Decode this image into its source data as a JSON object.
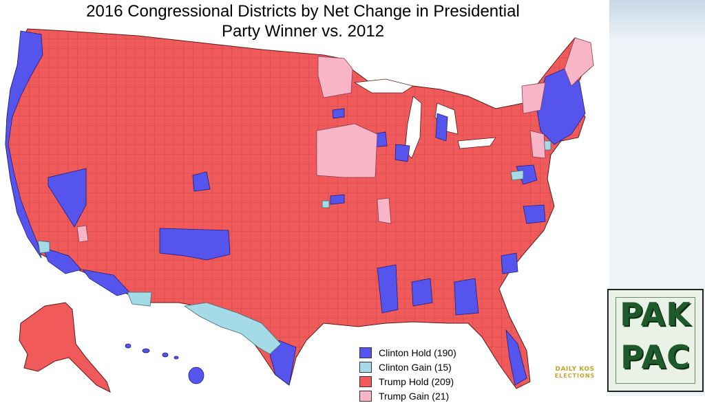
{
  "title": {
    "line1": "2016 Congressional Districts by Net Change in Presidential",
    "line2": "Party Winner vs. 2012"
  },
  "legend": [
    {
      "label": "Clinton Hold (190)",
      "color": "#5555ee"
    },
    {
      "label": "Clinton Gain (15)",
      "color": "#a4dbe6"
    },
    {
      "label": "Trump Hold (209)",
      "color": "#f15a5a"
    },
    {
      "label": "Trump Gain (21)",
      "color": "#f8b5c8"
    }
  ],
  "logos": {
    "pakpac_line1": "PAK",
    "pakpac_line2": "PAC",
    "daily_kos_line1": "DAILY KOS",
    "daily_kos_line2": "ELECTIONS"
  },
  "colors": {
    "clinton_hold": "#5555ee",
    "clinton_gain": "#a4dbe6",
    "trump_hold": "#f15a5a",
    "trump_gain": "#f8b5c8",
    "border": "#5a1a1a"
  }
}
